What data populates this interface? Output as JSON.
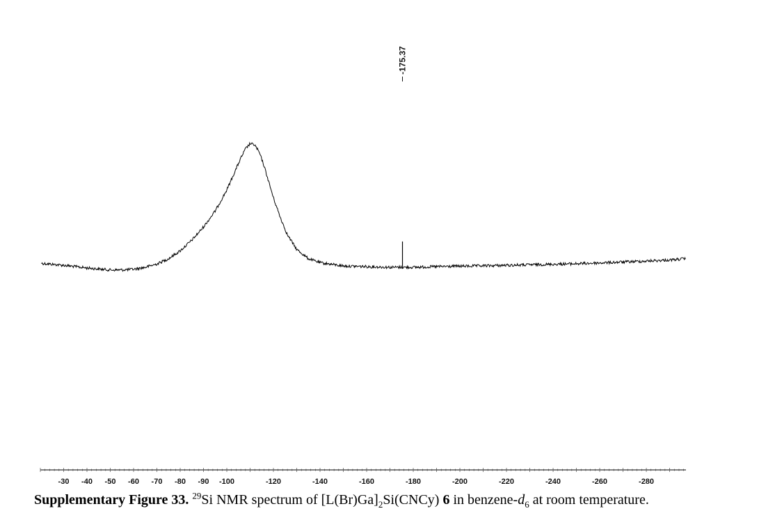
{
  "chart_data": {
    "type": "line",
    "title": "",
    "xlabel": "",
    "ylabel": "",
    "x_unit": "ppm",
    "xlim": [
      -20,
      -297
    ],
    "x_direction": "decreasing",
    "y_range": [
      0,
      1
    ],
    "y_axis_shown": false,
    "grid": false,
    "legend": "none",
    "x_ticks": [
      -30,
      -40,
      -50,
      -60,
      -70,
      -80,
      -90,
      -100,
      -120,
      -140,
      -160,
      -180,
      -200,
      -220,
      -240,
      -260,
      -280
    ],
    "x_tick_labels": [
      "-30",
      "-40",
      "-50",
      "-60",
      "-70",
      "-80",
      "-90",
      "-100",
      "-120",
      "-140",
      "-160",
      "-180",
      "-200",
      "-220",
      "-240",
      "-260",
      "-280"
    ],
    "peak_labels": [
      {
        "x": -175.37,
        "label": "-175.37"
      }
    ],
    "series": [
      {
        "color": "#000000",
        "x": [
          -20.5,
          -25,
          -30,
          -35,
          -40,
          -45,
          -50,
          -55,
          -60,
          -65,
          -70,
          -75,
          -80,
          -85,
          -90,
          -95,
          -100,
          -103,
          -106,
          -108,
          -110,
          -112,
          -114,
          -116,
          -118,
          -120,
          -123,
          -126,
          -130,
          -135,
          -140,
          -150,
          -160,
          -170,
          -174,
          -175,
          -175.37,
          -175.8,
          -176.5,
          -180,
          -190,
          -200,
          -210,
          -220,
          -230,
          -240,
          -250,
          -260,
          -270,
          -280,
          -290,
          -297
        ],
        "y": [
          0.025,
          0.018,
          0.01,
          0.0,
          -0.01,
          -0.018,
          -0.025,
          -0.025,
          -0.02,
          -0.005,
          0.02,
          0.06,
          0.12,
          0.2,
          0.3,
          0.42,
          0.58,
          0.7,
          0.82,
          0.89,
          0.93,
          0.92,
          0.86,
          0.76,
          0.64,
          0.52,
          0.37,
          0.24,
          0.13,
          0.06,
          0.03,
          0.005,
          0.0,
          -0.005,
          -0.005,
          0.012,
          0.19,
          0.015,
          -0.005,
          -0.005,
          0.0,
          0.003,
          0.006,
          0.01,
          0.014,
          0.018,
          0.022,
          0.028,
          0.035,
          0.042,
          0.05,
          0.06
        ]
      }
    ]
  },
  "caption": {
    "label": "Supplementary Figure 33.",
    "isotope": "29",
    "pre": "Si NMR spectrum of [L(Br)Ga]",
    "sub2": "2",
    "mid": "Si(CNCy) ",
    "compound": "6",
    "mid2": " in benzene-",
    "solvent_italic": "d",
    "solvent_sub": "6",
    "post": " at room temperature."
  },
  "colors": {
    "trace": "#000000",
    "axis": "#000000",
    "background": "#ffffff"
  }
}
